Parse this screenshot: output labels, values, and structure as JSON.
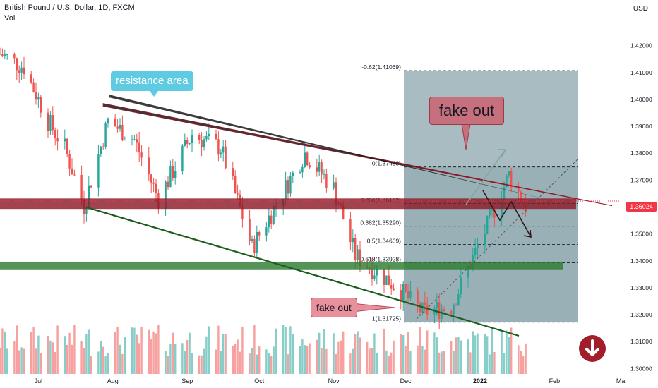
{
  "header": {
    "title": "British Pound / U.S. Dollar, 1D, FXCM",
    "volume_label": "Vol",
    "currency": "USD"
  },
  "current_price": "1.36024",
  "annotations": {
    "resistance_label": "resistance area",
    "fake_out_large": "fake out",
    "fake_out_small": "fake out"
  },
  "colors": {
    "up": "#26a69a",
    "down": "#ef5350",
    "resistance_zone": "#8e1b2a",
    "support_zone": "#2e7d32",
    "trendline": "#1b5e20",
    "price_tag": "#f23645"
  },
  "icons": {
    "scroll_button": "arrow-down-circle-icon"
  },
  "chart_data": {
    "type": "candlestick",
    "title": "British Pound / U.S. Dollar, 1D, FXCM",
    "y_ticks": [
      "1.42000",
      "1.41000",
      "1.40000",
      "1.39000",
      "1.38000",
      "1.37000",
      "1.36000",
      "1.35000",
      "1.34000",
      "1.33000",
      "1.32000",
      "1.31000",
      "1.30000"
    ],
    "x_ticks": [
      "Jul",
      "Aug",
      "Sep",
      "Oct",
      "Nov",
      "Dec",
      "2022",
      "Feb",
      "Mar"
    ],
    "ylim": [
      1.298,
      1.4325
    ],
    "x_range": [
      "2021-06-15",
      "2022-03-10"
    ],
    "grid": false,
    "fib_levels": [
      {
        "label": "-0.62(1.41069)",
        "value": 1.41069
      },
      {
        "label": "0(1.37493)",
        "value": 1.37493
      },
      {
        "label": "0.236(1.36132)",
        "value": 1.36132
      },
      {
        "label": "0.382(1.35290)",
        "value": 1.3529
      },
      {
        "label": "0.5(1.34609)",
        "value": 1.34609
      },
      {
        "label": "0.618(1.33928)",
        "value": 1.33928
      },
      {
        "label": "1(1.31725)",
        "value": 1.31725
      }
    ],
    "zones": [
      {
        "name": "resistance",
        "from": 1.3593,
        "to": 1.3632
      },
      {
        "name": "support",
        "from": 1.3366,
        "to": 1.3397
      }
    ],
    "trendlines": [
      {
        "from": [
          "2021-07-28",
          1.3985
        ],
        "to": [
          "2022-02-25",
          1.3605
        ]
      },
      {
        "from": [
          "2021-07-20",
          1.3585
        ],
        "to": [
          "2022-02-20",
          1.3135
        ]
      }
    ],
    "projections": [
      {
        "points": [
          [
            "2022-01-20",
            1.3608
          ],
          [
            "2022-02-05",
            1.3786
          ]
        ]
      },
      {
        "points": [
          [
            "2022-01-20",
            1.3608
          ],
          [
            "2022-01-31",
            1.3525
          ],
          [
            "2022-02-10",
            1.3608
          ],
          [
            "2022-02-20",
            1.3472
          ]
        ]
      }
    ],
    "ohlc_anchors": [
      {
        "date": "2021-06-15",
        "close": 1.417
      },
      {
        "date": "2021-06-25",
        "close": 1.412
      },
      {
        "date": "2021-07-05",
        "close": 1.392
      },
      {
        "date": "2021-07-12",
        "close": 1.382
      },
      {
        "date": "2021-07-20",
        "close": 1.3605
      },
      {
        "date": "2021-07-30",
        "close": 1.392
      },
      {
        "date": "2021-08-10",
        "close": 1.385
      },
      {
        "date": "2021-08-20",
        "close": 1.363
      },
      {
        "date": "2021-09-03",
        "close": 1.387
      },
      {
        "date": "2021-09-15",
        "close": 1.382
      },
      {
        "date": "2021-09-28",
        "close": 1.345
      },
      {
        "date": "2021-10-20",
        "close": 1.38
      },
      {
        "date": "2021-11-01",
        "close": 1.367
      },
      {
        "date": "2021-11-10",
        "close": 1.342
      },
      {
        "date": "2021-11-25",
        "close": 1.332
      },
      {
        "date": "2021-12-08",
        "close": 1.321
      },
      {
        "date": "2021-12-20",
        "close": 1.323
      },
      {
        "date": "2022-01-05",
        "close": 1.355
      },
      {
        "date": "2022-01-13",
        "close": 1.372
      },
      {
        "date": "2022-01-20",
        "close": 1.3602
      }
    ]
  }
}
